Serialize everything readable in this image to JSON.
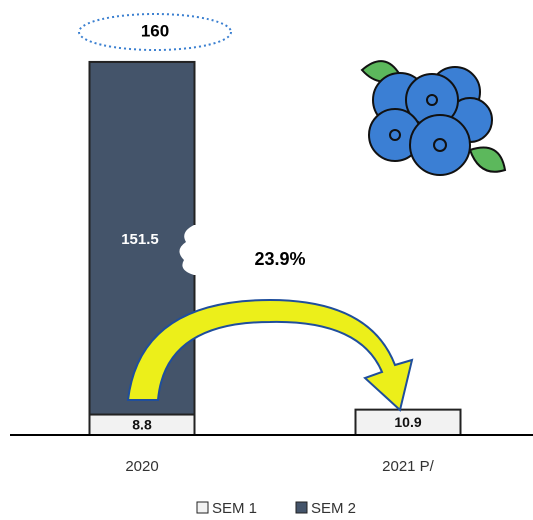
{
  "chart_data": {
    "type": "stacked_bar",
    "categories": [
      "2020",
      "2021 P/"
    ],
    "series": [
      {
        "name": "SEM 1",
        "color": "#f2f2f2",
        "values": [
          8.8,
          10.9
        ]
      },
      {
        "name": "SEM 2",
        "color": "#44546a",
        "values": [
          151.5,
          null
        ]
      }
    ],
    "totals": [
      160,
      null
    ],
    "annotation": "23.9%",
    "ylim": [
      0,
      165
    ],
    "legend": "bottom"
  }
}
